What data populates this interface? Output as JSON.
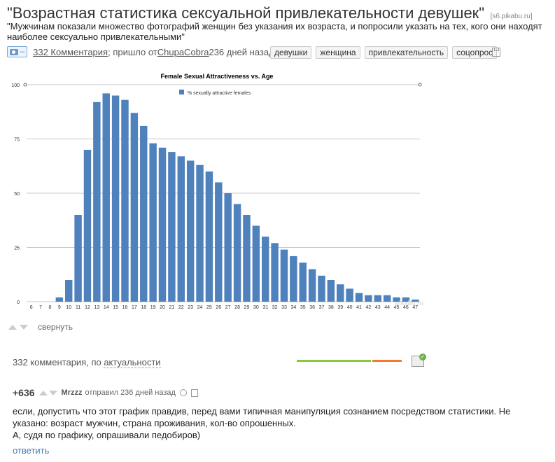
{
  "post": {
    "title": "\"Возрастная статистика сексуальной привлекательности девушек\"",
    "source": "[s6.pikabu.ru]",
    "subtitle": "\"Мужчинам показали множество фотографий женщин без указания их возраста, и попросили указать на тех, кого они находят наиболее сексуально привлекательными\"",
    "camera_dash": "–",
    "comments_link": "332 Комментария",
    "posted_from": "; пришло от ",
    "author": "ChupaCobra",
    "age": " 236 дней назад",
    "tags": [
      "девушки",
      "женщина",
      "привлекательность",
      "соцопрос"
    ],
    "collapse": "свернуть",
    "watermark": "pikabu.ru"
  },
  "comments_bar": {
    "count_text": "332 комментария, по ",
    "sort": "актуальности"
  },
  "comment": {
    "score": "+636",
    "author": "Mrzzz",
    "meta": " отправил 236 дней назад",
    "body": "если, допустить что этот график правдив, перед вами типичная манипуляция сознанием посредством статистики. Не указано: возраст мужчин, страна проживания, кол-во опрошенных.",
    "body2": "А, судя по графику, опрашивали педобиров)",
    "reply": "ответить"
  },
  "colors": {
    "bar": "#4f81bd",
    "accent_green": "#8cc63f",
    "accent_orange": "#f07a2d",
    "link": "#4a7ab8"
  },
  "chart_data": {
    "type": "bar",
    "title": "Female Sexual Attractiveness vs. Age",
    "legend": "% sexually attractive females",
    "legend_position": "top-center",
    "ylim": [
      0,
      100
    ],
    "yticks": [
      0,
      25,
      50,
      75,
      100
    ],
    "grid": true,
    "categories": [
      "6",
      "7",
      "8",
      "9",
      "10",
      "11",
      "12",
      "13",
      "14",
      "15",
      "16",
      "17",
      "18",
      "19",
      "20",
      "21",
      "22",
      "23",
      "24",
      "25",
      "26",
      "27",
      "28",
      "29",
      "30",
      "31",
      "32",
      "33",
      "34",
      "35",
      "36",
      "37",
      "38",
      "39",
      "40",
      "41",
      "42",
      "43",
      "44",
      "45",
      "46",
      "47"
    ],
    "values": [
      0,
      0,
      0,
      2,
      10,
      40,
      70,
      92,
      96,
      95,
      93,
      87,
      81,
      73,
      71,
      69,
      67,
      65,
      63,
      60,
      55,
      50,
      45,
      40,
      35,
      30,
      27,
      24,
      21,
      18,
      15,
      12,
      10,
      8,
      6,
      4,
      3,
      3,
      3,
      2,
      2,
      1
    ]
  }
}
